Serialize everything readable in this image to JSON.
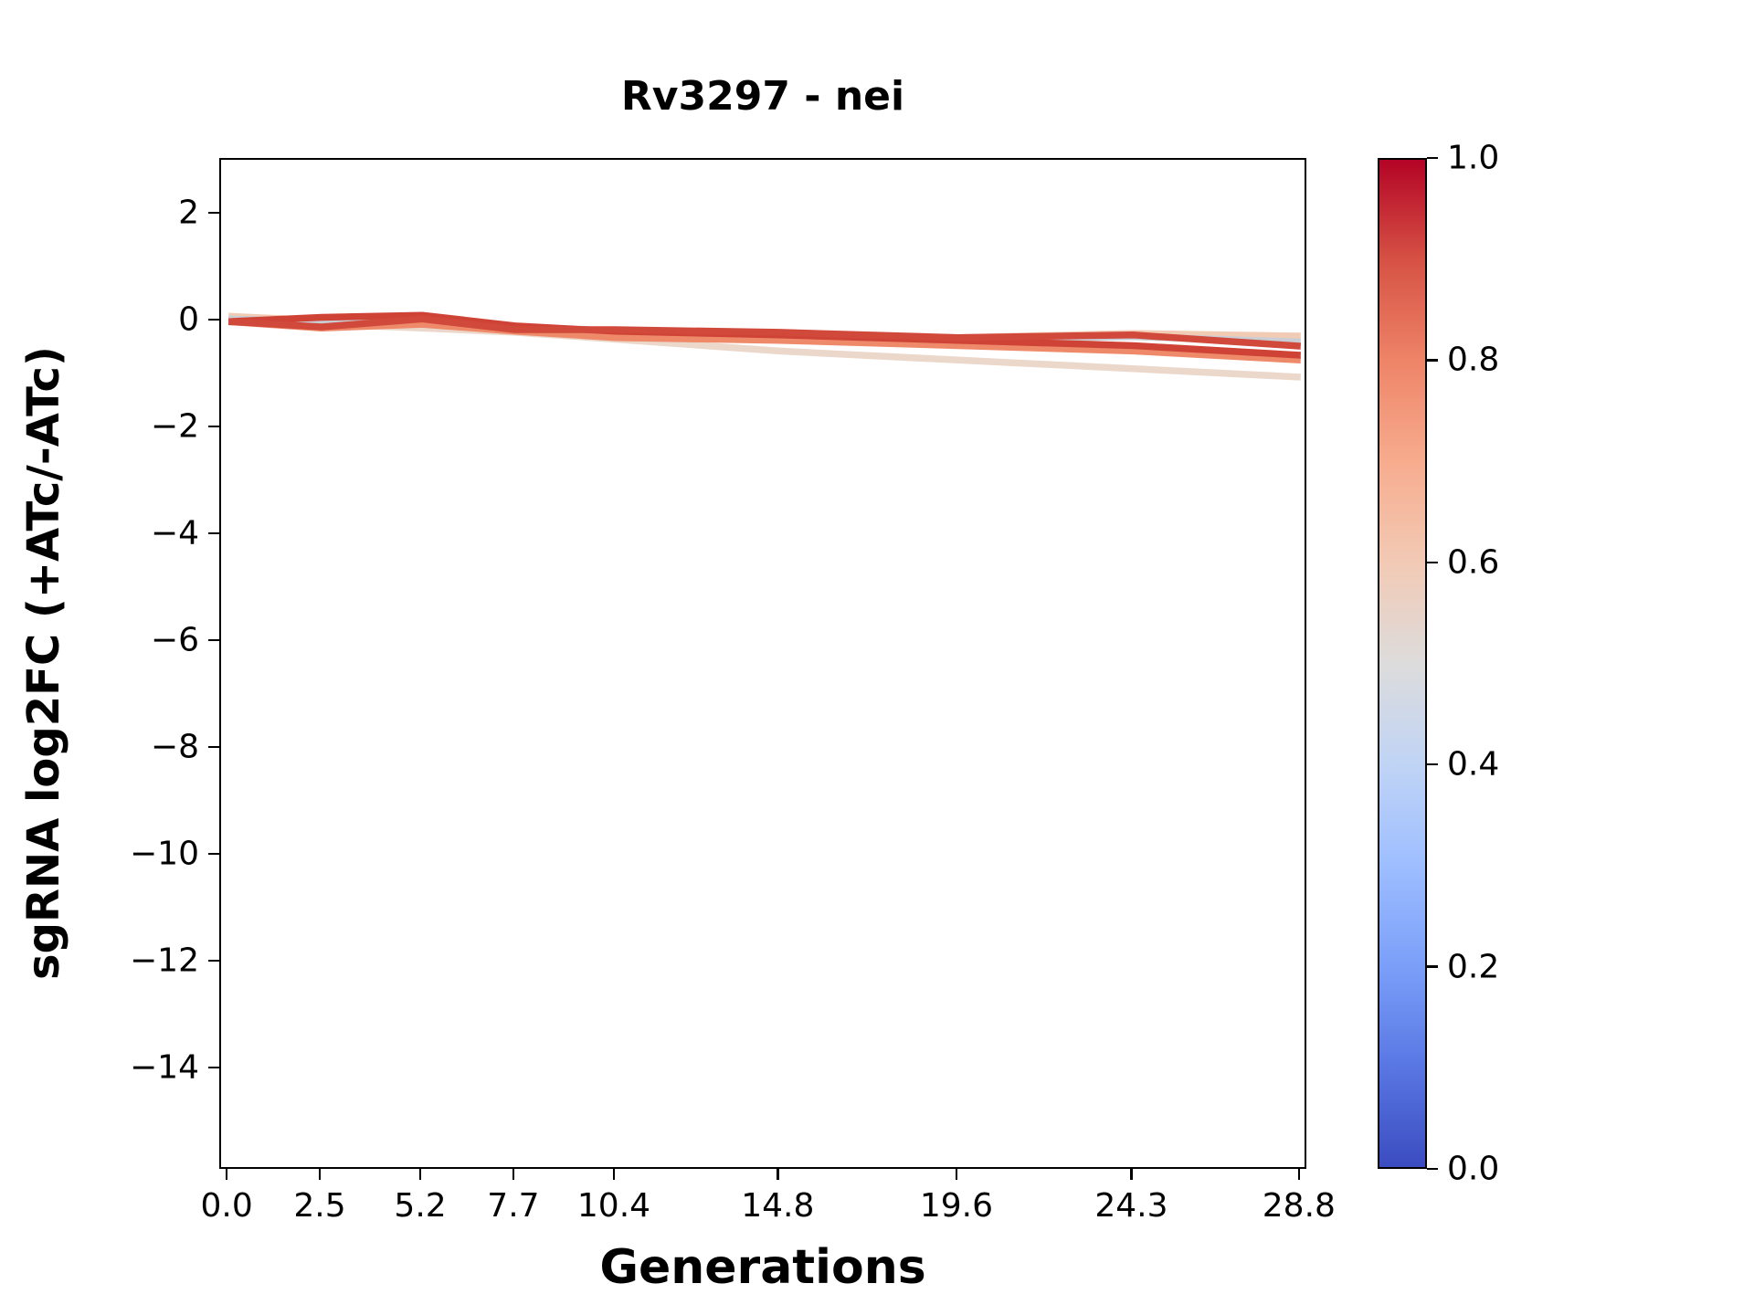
{
  "figure": {
    "background": "#ffffff",
    "text_color": "#000000"
  },
  "chart_data": {
    "type": "line",
    "title": "Rv3297 - nei",
    "xlabel": "Generations",
    "ylabel": "sgRNA log2FC (+ATc/-ATc)",
    "grid": false,
    "legend": "colorbar-right",
    "xlim": [
      -0.2,
      29.0
    ],
    "ylim": [
      -15.9,
      3.03
    ],
    "x": [
      0.0,
      2.5,
      5.2,
      7.7,
      10.4,
      14.8,
      19.6,
      24.3,
      28.8
    ],
    "xtick_labels": [
      "0.0",
      "2.5",
      "5.2",
      "7.7",
      "10.4",
      "14.8",
      "19.6",
      "24.3",
      "28.8"
    ],
    "ytick_values": [
      2,
      0,
      -2,
      -4,
      -6,
      -8,
      -10,
      -12,
      -14
    ],
    "ytick_labels": [
      "2",
      "0",
      "−2",
      "−4",
      "−6",
      "−8",
      "−10",
      "−12",
      "−14"
    ],
    "series": [
      {
        "cmap_value": 0.57,
        "color": "#ecd8cb",
        "values": [
          0.0,
          -0.05,
          -0.12,
          -0.2,
          -0.33,
          -0.55,
          -0.72,
          -0.88,
          -1.04
        ]
      },
      {
        "cmap_value": 0.62,
        "color": "#f2cbb4",
        "values": [
          0.1,
          0.02,
          -0.02,
          -0.1,
          -0.2,
          -0.27,
          -0.3,
          -0.22,
          -0.27
        ]
      },
      {
        "cmap_value": 0.45,
        "color": "#c9cdd4",
        "values": [
          0.05,
          0.0,
          -0.05,
          -0.12,
          -0.22,
          -0.3,
          -0.35,
          -0.28,
          -0.38
        ]
      },
      {
        "cmap_value": 0.79,
        "color": "#ee8a6a",
        "values": [
          0.0,
          -0.12,
          -0.05,
          -0.18,
          -0.3,
          -0.35,
          -0.45,
          -0.55,
          -0.72
        ]
      },
      {
        "cmap_value": 0.87,
        "color": "#cf4336",
        "values": [
          0.0,
          0.08,
          0.12,
          -0.08,
          -0.18,
          -0.25,
          -0.35,
          -0.45,
          -0.63
        ]
      },
      {
        "cmap_value": 0.88,
        "color": "#d0493b",
        "values": [
          0.0,
          -0.1,
          0.05,
          -0.15,
          -0.15,
          -0.2,
          -0.3,
          -0.25,
          -0.46
        ]
      }
    ],
    "line_width": 7.5,
    "colorbar": {
      "colormap": "coolwarm",
      "min": 0.0,
      "max": 1.0,
      "tick_values": [
        1.0,
        0.8,
        0.6,
        0.4,
        0.2,
        0.0
      ],
      "tick_labels": [
        "1.0",
        "0.8",
        "0.6",
        "0.4",
        "0.2",
        "0.0"
      ],
      "stops": [
        {
          "t": 0.0,
          "color": "#3b4cc0"
        },
        {
          "t": 0.1,
          "color": "#5977e3"
        },
        {
          "t": 0.2,
          "color": "#7b9ff9"
        },
        {
          "t": 0.3,
          "color": "#9ebeff"
        },
        {
          "t": 0.4,
          "color": "#c0d4f5"
        },
        {
          "t": 0.5,
          "color": "#dddcdc"
        },
        {
          "t": 0.6,
          "color": "#f2cab5"
        },
        {
          "t": 0.7,
          "color": "#f7ac8e"
        },
        {
          "t": 0.8,
          "color": "#ee8468"
        },
        {
          "t": 0.9,
          "color": "#d65244"
        },
        {
          "t": 1.0,
          "color": "#b40426"
        }
      ]
    }
  }
}
